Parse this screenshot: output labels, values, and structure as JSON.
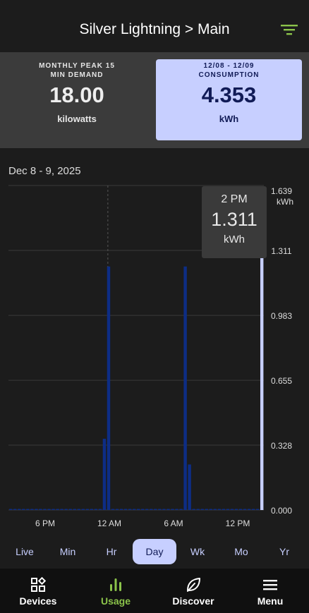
{
  "header": {
    "title": "Silver Lightning > Main",
    "filter_icon": "filter-icon"
  },
  "stats": {
    "peak": {
      "label_line1": "MONTHLY PEAK 15",
      "label_line2": "MIN DEMAND",
      "value": "18.00",
      "unit": "kilowatts"
    },
    "consumption": {
      "range": "12/08 - 12/09",
      "label": "CONSUMPTION",
      "value": "4.353",
      "unit": "kWh"
    }
  },
  "chart": {
    "date_label": "Dec 8 - 9, 2025"
  },
  "tooltip": {
    "time": "2 PM",
    "value": "1.311",
    "unit": "kWh"
  },
  "chart_data": {
    "type": "bar",
    "ylabel": "kWh",
    "ylim": [
      0,
      1.639
    ],
    "y_ticks": [
      "0.000",
      "0.328",
      "0.655",
      "0.983",
      "1.311",
      "1.639"
    ],
    "x_ticks": [
      "6 PM",
      "12 AM",
      "6 AM",
      "12 PM"
    ],
    "values": [
      0,
      0,
      0,
      0,
      0,
      0,
      0,
      0,
      0,
      0,
      0,
      0,
      0,
      0,
      0,
      0,
      0,
      0,
      0,
      0,
      0,
      0,
      0.36,
      1.23,
      0,
      0,
      0,
      0,
      0,
      0,
      0,
      0,
      0,
      0,
      0,
      0,
      0,
      0,
      0,
      0,
      0,
      1.23,
      0.23,
      0,
      0,
      0,
      0,
      0,
      0,
      0,
      0,
      0,
      0,
      0,
      0,
      0,
      0,
      0,
      0,
      1.311
    ],
    "selected_index": 59,
    "colors": {
      "bar": "#0d2d85",
      "selected": "#c7cfff",
      "grid": "#3a3a3a"
    }
  },
  "ranges": {
    "items": [
      "Live",
      "Min",
      "Hr",
      "Day",
      "Wk",
      "Mo",
      "Yr"
    ],
    "active": "Day"
  },
  "nav": {
    "devices": "Devices",
    "usage": "Usage",
    "discover": "Discover",
    "menu": "Menu"
  }
}
